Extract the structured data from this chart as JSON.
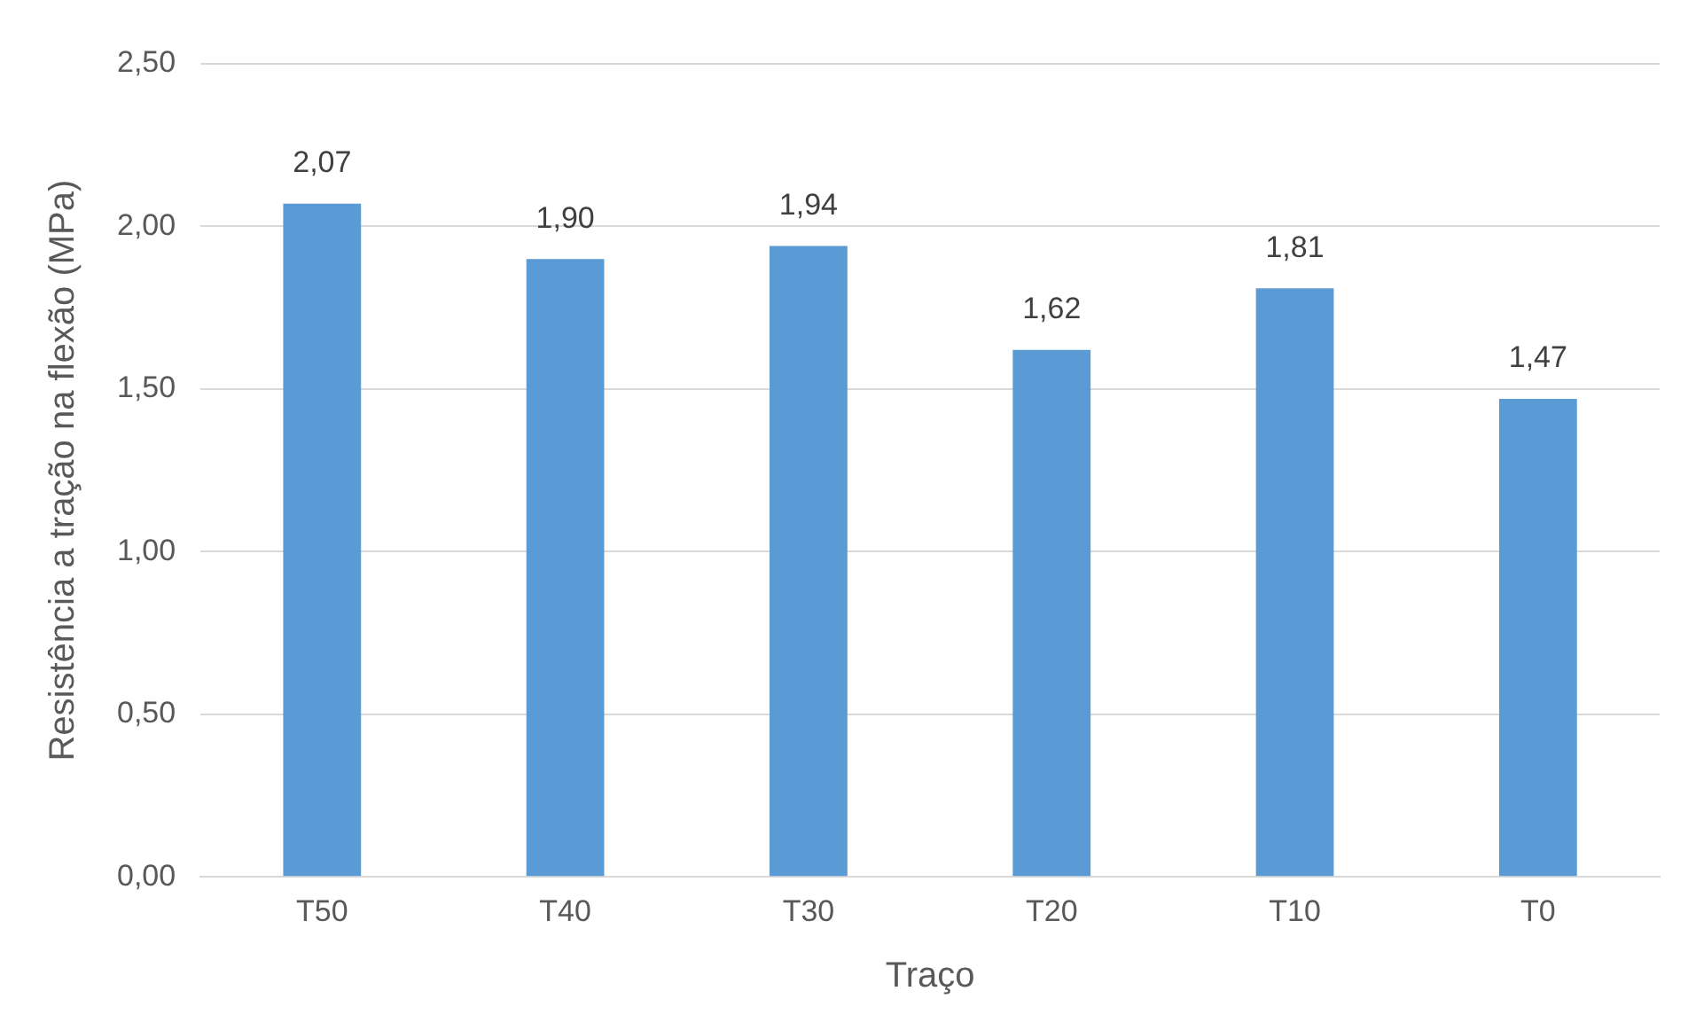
{
  "chart_data": {
    "type": "bar",
    "xlabel": "Traço",
    "ylabel": "Resistência a tração na flexão (MPa)",
    "categories": [
      "T50",
      "T40",
      "T30",
      "T20",
      "T10",
      "T0"
    ],
    "values": [
      2.07,
      1.9,
      1.94,
      1.62,
      1.81,
      1.47
    ],
    "value_labels": [
      "2,07",
      "1,90",
      "1,94",
      "1,62",
      "1,81",
      "1,47"
    ],
    "color": "#5b9bd5",
    "ylim": [
      0,
      2.5
    ],
    "yticks": [
      {
        "value": 0,
        "label": "0,00"
      },
      {
        "value": 0.5,
        "label": "0,50"
      },
      {
        "value": 1,
        "label": "1,00"
      },
      {
        "value": 1.5,
        "label": "1,50"
      },
      {
        "value": 2,
        "label": "2,00"
      },
      {
        "value": 2.5,
        "label": "2,50"
      }
    ],
    "grid": "y",
    "legend": false
  }
}
